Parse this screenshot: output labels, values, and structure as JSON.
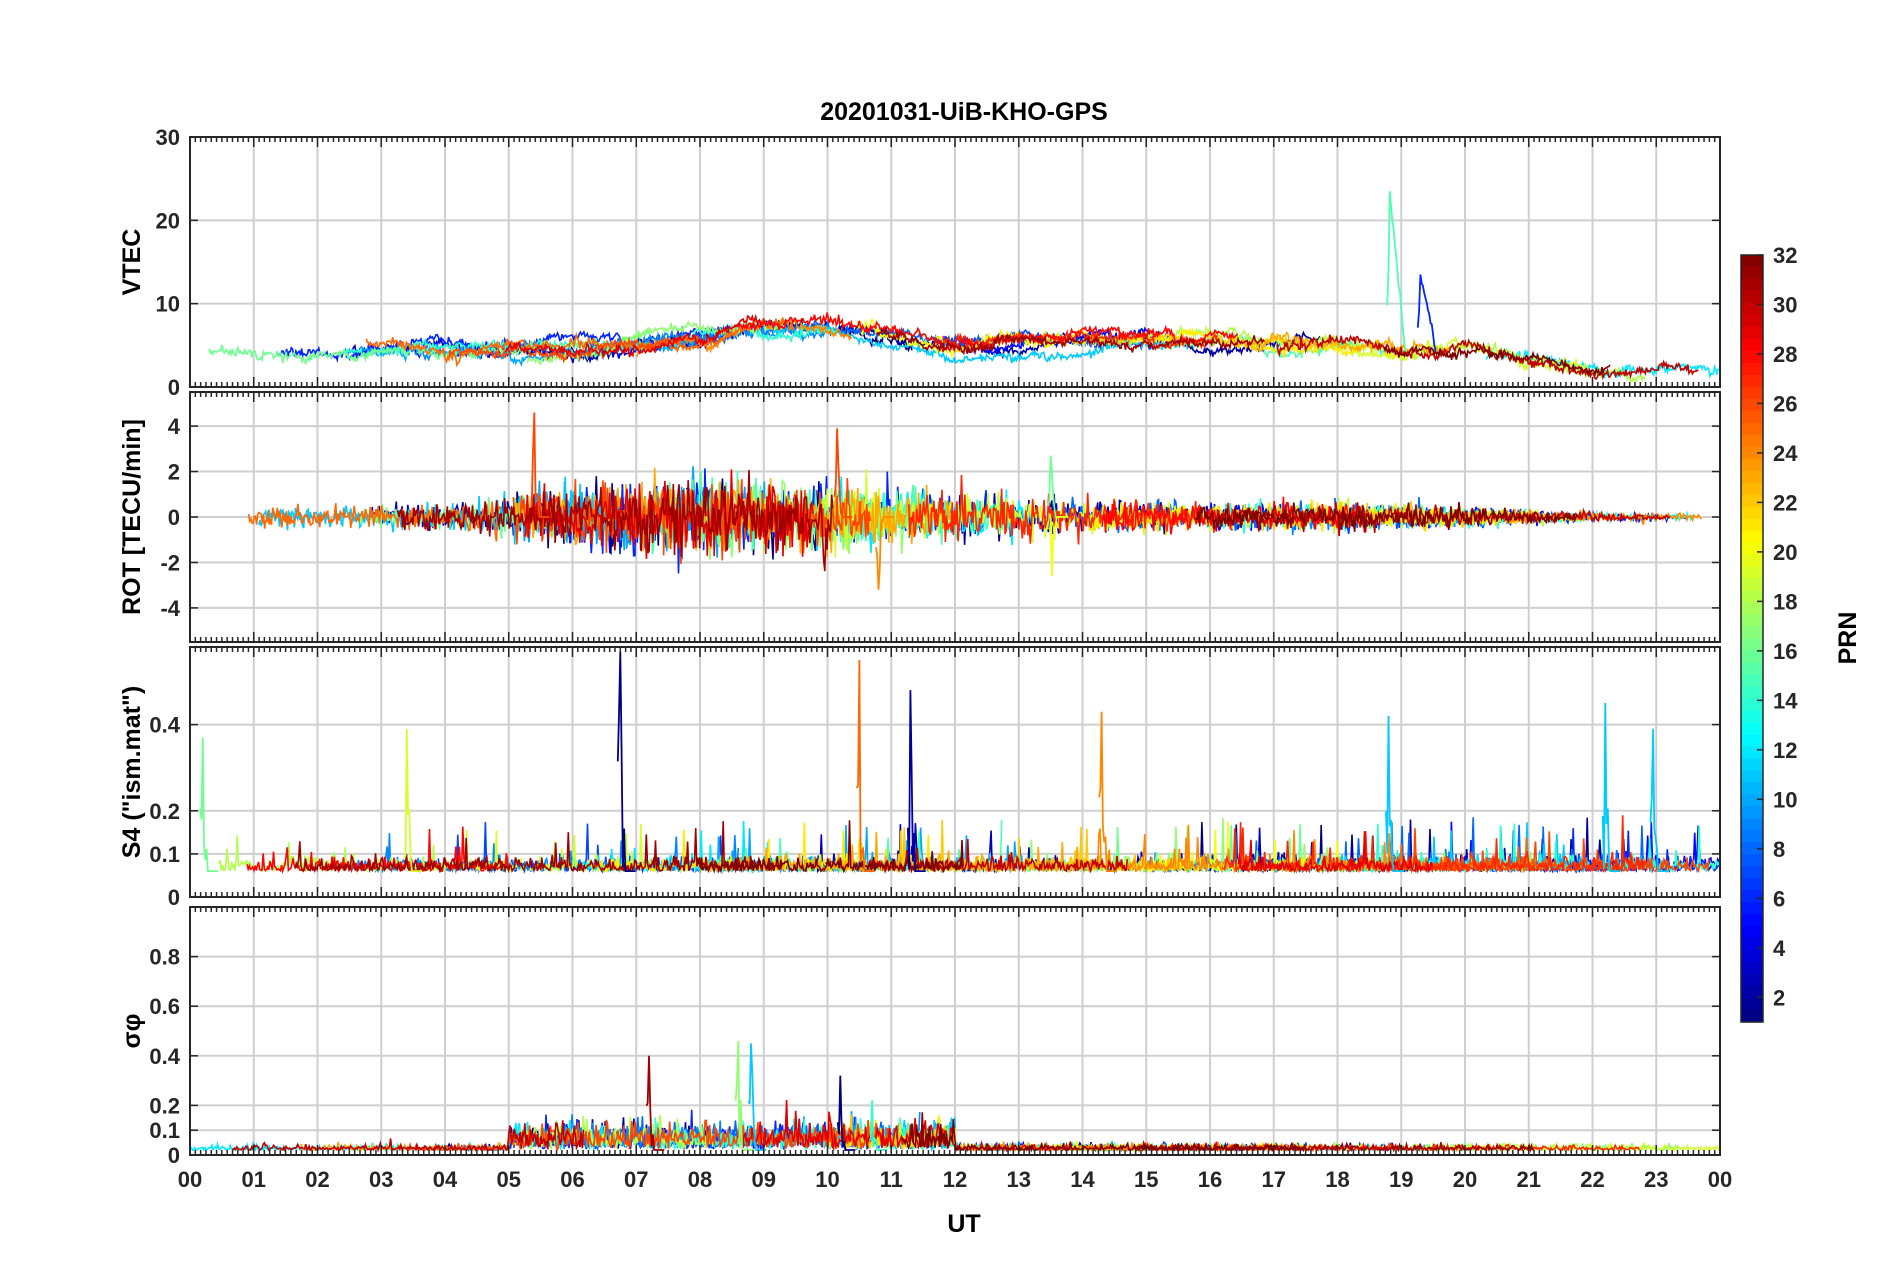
{
  "chart_data": {
    "type": "line",
    "title": "20201031-UiB-KHO-GPS",
    "xlabel": "UT",
    "x_tick_labels": [
      "00",
      "01",
      "02",
      "03",
      "04",
      "05",
      "06",
      "07",
      "08",
      "09",
      "10",
      "11",
      "12",
      "13",
      "14",
      "15",
      "16",
      "17",
      "18",
      "19",
      "20",
      "21",
      "22",
      "23",
      "00"
    ],
    "xlim": [
      0,
      24
    ],
    "colorbar": {
      "label": "PRN",
      "range": [
        1,
        32
      ],
      "tick_labels": [
        "2",
        "4",
        "6",
        "8",
        "10",
        "12",
        "14",
        "16",
        "18",
        "20",
        "22",
        "24",
        "26",
        "28",
        "30",
        "32"
      ],
      "colormap": "jet"
    },
    "panels": [
      {
        "ylabel": "VTEC",
        "ylim": [
          0,
          30
        ],
        "y_tick_labels": [
          "0",
          "10",
          "20",
          "30"
        ],
        "approx_profile": {
          "x": [
            0,
            2,
            4,
            6,
            8,
            9,
            10,
            11,
            12,
            14,
            16,
            18,
            19,
            20,
            21,
            22,
            23,
            24
          ],
          "y": [
            3.5,
            4,
            4.5,
            4,
            6,
            7.5,
            7,
            6,
            5,
            5.5,
            5.5,
            5,
            4.5,
            5,
            3.5,
            2,
            1.5,
            2
          ]
        },
        "spikes": [
          {
            "x": 18.82,
            "peak": 23.5
          },
          {
            "x": 19.3,
            "peak": 13.5
          }
        ]
      },
      {
        "ylabel": "ROT [TECU/min]",
        "ylim": [
          -5.5,
          5.5
        ],
        "y_tick_labels": [
          "-4",
          "-2",
          "0",
          "2",
          "4"
        ],
        "approx_envelope": {
          "x": [
            0,
            2,
            4,
            5,
            6,
            7,
            8,
            9,
            10,
            11,
            12,
            13,
            14,
            16,
            18,
            20,
            21,
            22,
            24
          ],
          "amplitude": [
            0.6,
            0.5,
            0.6,
            1.0,
            1.3,
            1.6,
            1.8,
            1.6,
            1.6,
            1.3,
            1.0,
            1.0,
            0.8,
            0.6,
            0.6,
            0.5,
            0.3,
            0.2,
            0.15
          ]
        },
        "spikes": [
          {
            "x": 5.4,
            "peak": 4.6
          },
          {
            "x": 10.15,
            "peak": 3.9
          },
          {
            "x": 10.8,
            "peak": -3.2
          },
          {
            "x": 13.5,
            "peak": 2.7
          },
          {
            "x": 13.52,
            "peak": -2.6
          }
        ]
      },
      {
        "ylabel": "S4 (\"ism.mat\")",
        "ylim": [
          0,
          0.58
        ],
        "y_tick_labels": [
          "0",
          "0.1",
          "0.2",
          "0.4"
        ],
        "approx_baseline": 0.06,
        "spikes": [
          {
            "x": 0.2,
            "peak": 0.37
          },
          {
            "x": 3.4,
            "peak": 0.39
          },
          {
            "x": 6.75,
            "peak": 0.57
          },
          {
            "x": 10.5,
            "peak": 0.55
          },
          {
            "x": 11.3,
            "peak": 0.48
          },
          {
            "x": 14.3,
            "peak": 0.43
          },
          {
            "x": 18.8,
            "peak": 0.42
          },
          {
            "x": 22.2,
            "peak": 0.45
          },
          {
            "x": 22.95,
            "peak": 0.39
          }
        ]
      },
      {
        "ylabel": "σφ",
        "ylim": [
          0,
          1
        ],
        "y_tick_labels": [
          "0",
          "0.1",
          "0.2",
          "0.4",
          "0.6",
          "0.8"
        ],
        "approx_baseline": 0.02,
        "spikes": [
          {
            "x": 7.2,
            "peak": 0.4
          },
          {
            "x": 8.6,
            "peak": 0.46
          },
          {
            "x": 8.8,
            "peak": 0.45
          },
          {
            "x": 10.2,
            "peak": 0.32
          },
          {
            "x": 10.7,
            "peak": 0.22
          }
        ]
      }
    ]
  }
}
